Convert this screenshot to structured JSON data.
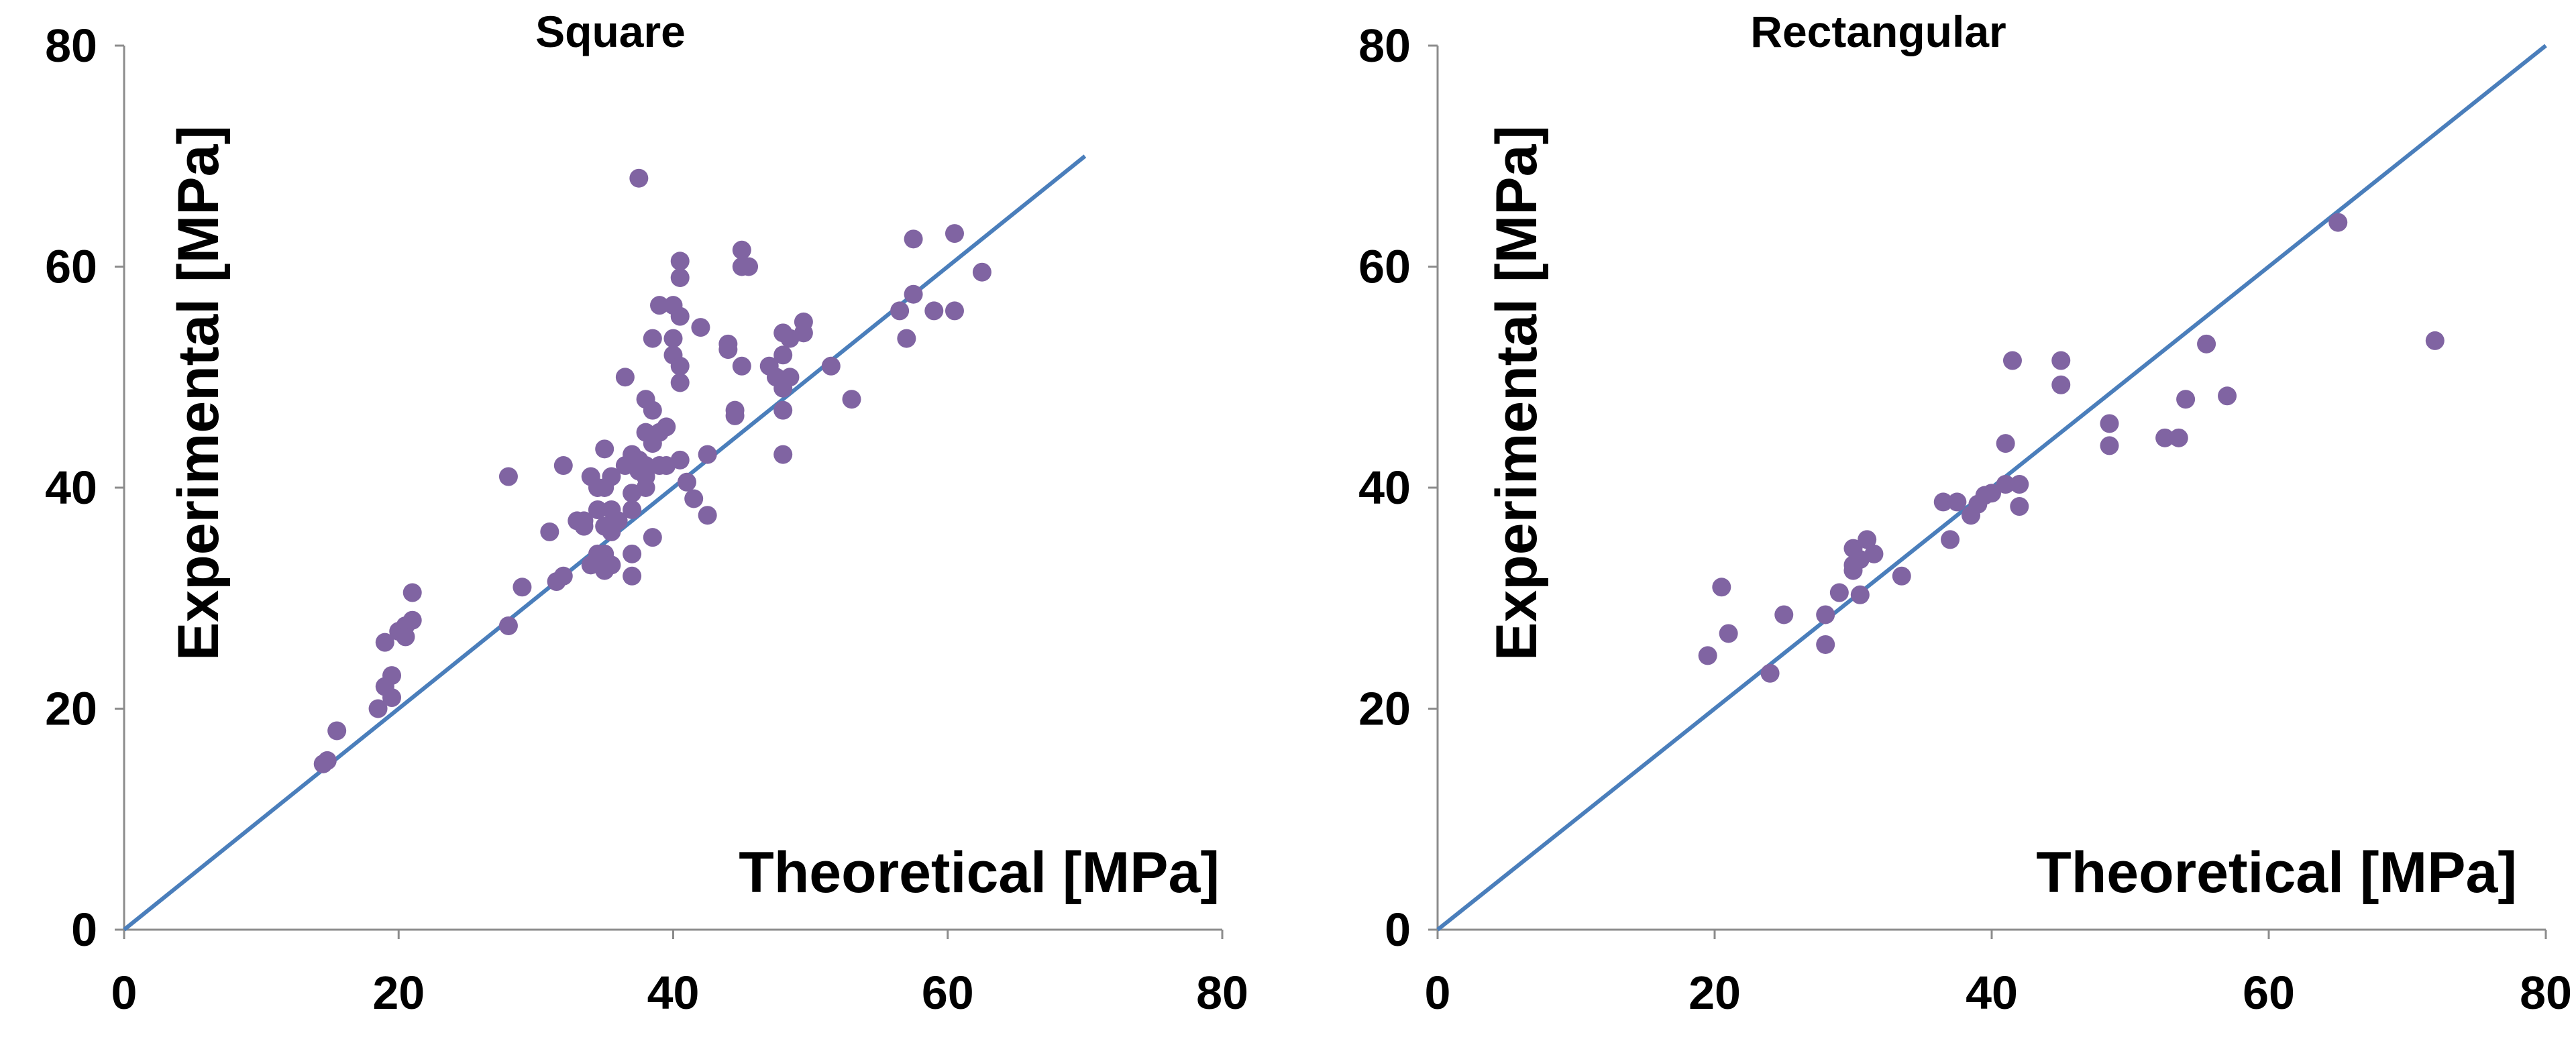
{
  "chart_data": [
    {
      "type": "scatter",
      "title": "Square",
      "xlabel": "Theoretical [MPa]",
      "ylabel": "Experimental [MPa]",
      "xlim": [
        0,
        80
      ],
      "ylim": [
        0,
        80
      ],
      "xticks": [
        "0",
        "20",
        "40",
        "60",
        "80"
      ],
      "yticks": [
        "0",
        "20",
        "40",
        "60",
        "80"
      ],
      "grid": false,
      "series": [
        {
          "name": "Experimental vs Theoretical",
          "points": [
            [
              14.5,
              15
            ],
            [
              14.8,
              15.3
            ],
            [
              15.5,
              18
            ],
            [
              18.5,
              20
            ],
            [
              19,
              22
            ],
            [
              19,
              26
            ],
            [
              19.5,
              21
            ],
            [
              19.5,
              23
            ],
            [
              20,
              27
            ],
            [
              20.5,
              27.5
            ],
            [
              20.5,
              26.5
            ],
            [
              21,
              28
            ],
            [
              21,
              30.5
            ],
            [
              28,
              41
            ],
            [
              28,
              27.5
            ],
            [
              29,
              31
            ],
            [
              31,
              36
            ],
            [
              31.5,
              31.5
            ],
            [
              32,
              42
            ],
            [
              32,
              32
            ],
            [
              33,
              37
            ],
            [
              33.5,
              37
            ],
            [
              33.5,
              36.5
            ],
            [
              34,
              41
            ],
            [
              34,
              33
            ],
            [
              34.5,
              40
            ],
            [
              34.5,
              38
            ],
            [
              34.5,
              34
            ],
            [
              35,
              43.5
            ],
            [
              35,
              40
            ],
            [
              35,
              36.5
            ],
            [
              35,
              34
            ],
            [
              35,
              32.5
            ],
            [
              35.5,
              41
            ],
            [
              35.5,
              38
            ],
            [
              35.5,
              36
            ],
            [
              35.5,
              33
            ],
            [
              36,
              37
            ],
            [
              36.5,
              50
            ],
            [
              36.5,
              42
            ],
            [
              37,
              43
            ],
            [
              37,
              39.5
            ],
            [
              37,
              38
            ],
            [
              37,
              34
            ],
            [
              37,
              32
            ],
            [
              37.5,
              68
            ],
            [
              37.5,
              42.5
            ],
            [
              37.5,
              41.5
            ],
            [
              38,
              48
            ],
            [
              38,
              45
            ],
            [
              38,
              42
            ],
            [
              38,
              41
            ],
            [
              38,
              40
            ],
            [
              38.5,
              53.5
            ],
            [
              38.5,
              47
            ],
            [
              38.5,
              44
            ],
            [
              38.5,
              35.5
            ],
            [
              39,
              56.5
            ],
            [
              39,
              45
            ],
            [
              39,
              42
            ],
            [
              39.5,
              45.5
            ],
            [
              39.5,
              42
            ],
            [
              40,
              56.5
            ],
            [
              40,
              53.5
            ],
            [
              40,
              52
            ],
            [
              40.5,
              60.5
            ],
            [
              40.5,
              59
            ],
            [
              40.5,
              55.5
            ],
            [
              40.5,
              51
            ],
            [
              40.5,
              49.5
            ],
            [
              40.5,
              42.5
            ],
            [
              41,
              40.5
            ],
            [
              41.5,
              39
            ],
            [
              42,
              54.5
            ],
            [
              42.5,
              43
            ],
            [
              42.5,
              37.5
            ],
            [
              44,
              53
            ],
            [
              44,
              52.5
            ],
            [
              44.5,
              47
            ],
            [
              44.5,
              46.5
            ],
            [
              45,
              61.5
            ],
            [
              45,
              60
            ],
            [
              45,
              51
            ],
            [
              45.5,
              60
            ],
            [
              47,
              51
            ],
            [
              47.5,
              50
            ],
            [
              48,
              54
            ],
            [
              48,
              52
            ],
            [
              48,
              49
            ],
            [
              48,
              47
            ],
            [
              48,
              43
            ],
            [
              48.5,
              53.5
            ],
            [
              48.5,
              50
            ],
            [
              49.5,
              55
            ],
            [
              49.5,
              54
            ],
            [
              51.5,
              51
            ],
            [
              53,
              48
            ],
            [
              56.5,
              56
            ],
            [
              57,
              53.5
            ],
            [
              57.5,
              62.5
            ],
            [
              57.5,
              57.5
            ],
            [
              59,
              56
            ],
            [
              60.5,
              63
            ],
            [
              60.5,
              56
            ],
            [
              62.5,
              59.5
            ]
          ]
        },
        {
          "name": "Equality line",
          "points": [
            [
              0,
              0
            ],
            [
              70,
              70
            ]
          ]
        }
      ]
    },
    {
      "type": "scatter",
      "title": "Rectangular",
      "xlabel": "Theoretical [MPa]",
      "ylabel": "Experimental [MPa]",
      "xlim": [
        0,
        80
      ],
      "ylim": [
        0,
        80
      ],
      "xticks": [
        "0",
        "20",
        "40",
        "60",
        "80"
      ],
      "yticks": [
        "0",
        "20",
        "40",
        "60",
        "80"
      ],
      "grid": false,
      "series": [
        {
          "name": "Experimental vs Theoretical",
          "points": [
            [
              19.5,
              24.8
            ],
            [
              20.5,
              31
            ],
            [
              21,
              26.8
            ],
            [
              25,
              28.5
            ],
            [
              24,
              23.2
            ],
            [
              28,
              25.8
            ],
            [
              28,
              28.5
            ],
            [
              29,
              30.5
            ],
            [
              30,
              34.5
            ],
            [
              30,
              33
            ],
            [
              30,
              32.5
            ],
            [
              30.5,
              30.3
            ],
            [
              30.5,
              33.5
            ],
            [
              31,
              35.3
            ],
            [
              31.5,
              34
            ],
            [
              33.5,
              32
            ],
            [
              36.5,
              38.7
            ],
            [
              37,
              35.3
            ],
            [
              37.5,
              38.7
            ],
            [
              38.5,
              37.5
            ],
            [
              39,
              38.5
            ],
            [
              39.5,
              39.3
            ],
            [
              40,
              39.5
            ],
            [
              41,
              40.3
            ],
            [
              41,
              44
            ],
            [
              41.5,
              51.5
            ],
            [
              42,
              40.3
            ],
            [
              42,
              38.3
            ],
            [
              45,
              51.5
            ],
            [
              45,
              49.3
            ],
            [
              48.5,
              45.8
            ],
            [
              48.5,
              43.8
            ],
            [
              52.5,
              44.5
            ],
            [
              53.5,
              44.5
            ],
            [
              54,
              48
            ],
            [
              55.5,
              53
            ],
            [
              57,
              48.3
            ],
            [
              65,
              64
            ],
            [
              72,
              53.3
            ]
          ]
        },
        {
          "name": "Equality line",
          "points": [
            [
              0,
              0
            ],
            [
              80,
              80
            ]
          ]
        }
      ]
    }
  ]
}
